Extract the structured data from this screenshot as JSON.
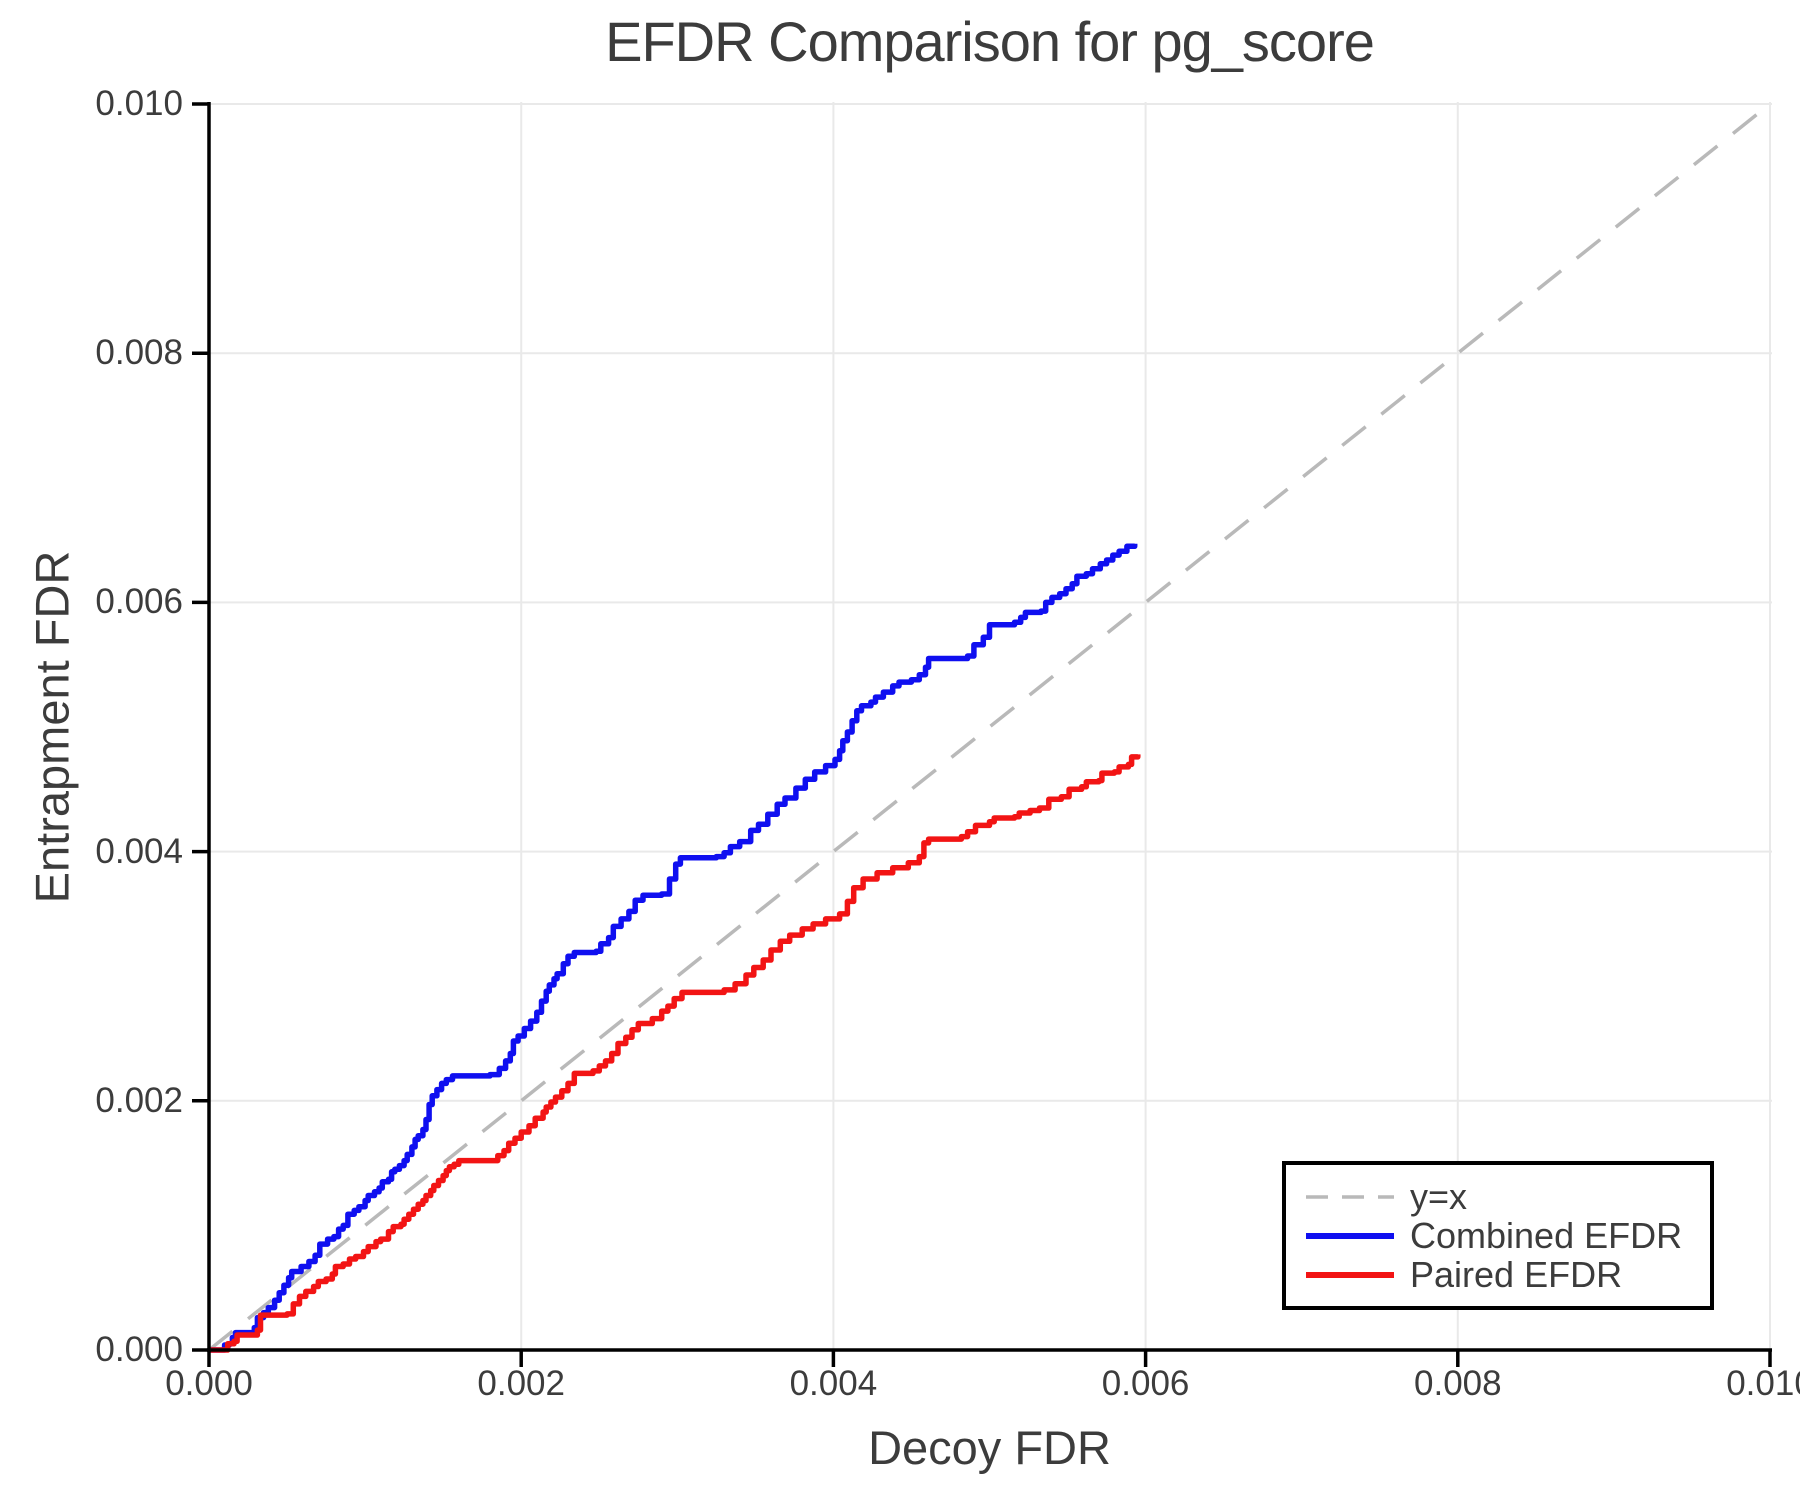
{
  "figure": {
    "background": "#ffffff"
  },
  "chart_data": {
    "type": "line",
    "title": "EFDR Comparison for pg_score",
    "xlabel": "Decoy FDR",
    "ylabel": "Entrapment FDR",
    "xlim": [
      0.0,
      0.01
    ],
    "ylim": [
      0.0,
      0.01
    ],
    "grid": true,
    "grid_color": "#e9e9e9",
    "axis_color": "#000000",
    "text_color": "#3c3c3c",
    "x_ticks": {
      "values": [
        0.0,
        0.002,
        0.004,
        0.006,
        0.008,
        0.01
      ],
      "labels": [
        "0.000",
        "0.002",
        "0.004",
        "0.006",
        "0.008",
        "0.010"
      ]
    },
    "y_ticks": {
      "values": [
        0.0,
        0.002,
        0.004,
        0.006,
        0.008,
        0.01
      ],
      "labels": [
        "0.000",
        "0.002",
        "0.004",
        "0.006",
        "0.008",
        "0.010"
      ]
    },
    "legend": {
      "position": "lower right",
      "border": true,
      "entries": [
        "y=x",
        "Combined EFDR",
        "Paired EFDR"
      ]
    },
    "series": [
      {
        "name": "y=x",
        "style": "dashed",
        "color": "#b9b9b9",
        "width": 3.5,
        "points": [
          [
            0.0,
            0.0
          ],
          [
            0.01,
            0.01
          ]
        ]
      },
      {
        "name": "Combined EFDR",
        "style": "step",
        "color": "#0f0ff0",
        "width": 5.5,
        "points": [
          [
            0.0,
            0.0
          ],
          [
            8e-05,
            0.0
          ],
          [
            0.0001,
            4e-05
          ],
          [
            0.00013,
            5e-05
          ],
          [
            0.00015,
            0.0001
          ],
          [
            0.00017,
            0.00014
          ],
          [
            0.00027,
            0.00014
          ],
          [
            0.00029,
            0.00018
          ],
          [
            0.00031,
            0.00026
          ],
          [
            0.00035,
            0.0003
          ],
          [
            0.00038,
            0.00034
          ],
          [
            0.00042,
            0.0004
          ],
          [
            0.00045,
            0.00046
          ],
          [
            0.00048,
            0.00052
          ],
          [
            0.00051,
            0.00058
          ],
          [
            0.00053,
            0.00063
          ],
          [
            0.00059,
            0.00067
          ],
          [
            0.00064,
            0.00071
          ],
          [
            0.00068,
            0.00076
          ],
          [
            0.00071,
            0.00085
          ],
          [
            0.00076,
            0.00089
          ],
          [
            0.0008,
            0.00091
          ],
          [
            0.00083,
            0.00097
          ],
          [
            0.00086,
            0.001
          ],
          [
            0.00089,
            0.00109
          ],
          [
            0.00093,
            0.00112
          ],
          [
            0.00096,
            0.00115
          ],
          [
            0.001,
            0.0012
          ],
          [
            0.00102,
            0.00124
          ],
          [
            0.00106,
            0.00127
          ],
          [
            0.00109,
            0.0013
          ],
          [
            0.00111,
            0.00135
          ],
          [
            0.00115,
            0.00137
          ],
          [
            0.00117,
            0.00143
          ],
          [
            0.00119,
            0.00145
          ],
          [
            0.00122,
            0.00148
          ],
          [
            0.00125,
            0.00152
          ],
          [
            0.00127,
            0.00157
          ],
          [
            0.0013,
            0.00163
          ],
          [
            0.00132,
            0.00169
          ],
          [
            0.00134,
            0.00172
          ],
          [
            0.00137,
            0.00177
          ],
          [
            0.00139,
            0.00185
          ],
          [
            0.00141,
            0.00197
          ],
          [
            0.00143,
            0.00204
          ],
          [
            0.00146,
            0.00209
          ],
          [
            0.00149,
            0.00214
          ],
          [
            0.00152,
            0.00217
          ],
          [
            0.00156,
            0.0022
          ],
          [
            0.0018,
            0.00221
          ],
          [
            0.00186,
            0.00226
          ],
          [
            0.0019,
            0.00232
          ],
          [
            0.00193,
            0.00238
          ],
          [
            0.00195,
            0.00248
          ],
          [
            0.00198,
            0.00252
          ],
          [
            0.00202,
            0.00258
          ],
          [
            0.00206,
            0.00264
          ],
          [
            0.0021,
            0.00271
          ],
          [
            0.00213,
            0.0028
          ],
          [
            0.00216,
            0.00288
          ],
          [
            0.00218,
            0.00293
          ],
          [
            0.00221,
            0.00298
          ],
          [
            0.00223,
            0.00302
          ],
          [
            0.00227,
            0.0031
          ],
          [
            0.0023,
            0.00316
          ],
          [
            0.00234,
            0.00319
          ],
          [
            0.00248,
            0.0032
          ],
          [
            0.00251,
            0.00326
          ],
          [
            0.00256,
            0.00331
          ],
          [
            0.00259,
            0.0034
          ],
          [
            0.00264,
            0.00346
          ],
          [
            0.00269,
            0.00352
          ],
          [
            0.00273,
            0.00361
          ],
          [
            0.00278,
            0.00365
          ],
          [
            0.0029,
            0.00366
          ],
          [
            0.00295,
            0.00378
          ],
          [
            0.00299,
            0.0039
          ],
          [
            0.00302,
            0.00395
          ],
          [
            0.00325,
            0.00396
          ],
          [
            0.0033,
            0.00399
          ],
          [
            0.00334,
            0.00404
          ],
          [
            0.0034,
            0.00408
          ],
          [
            0.00347,
            0.00417
          ],
          [
            0.00352,
            0.00422
          ],
          [
            0.00358,
            0.0043
          ],
          [
            0.00364,
            0.00438
          ],
          [
            0.00369,
            0.00443
          ],
          [
            0.00376,
            0.00451
          ],
          [
            0.00382,
            0.00458
          ],
          [
            0.00388,
            0.00464
          ],
          [
            0.00395,
            0.00469
          ],
          [
            0.00401,
            0.00474
          ],
          [
            0.00404,
            0.00481
          ],
          [
            0.00406,
            0.00489
          ],
          [
            0.00409,
            0.00496
          ],
          [
            0.00412,
            0.00505
          ],
          [
            0.00415,
            0.00513
          ],
          [
            0.00418,
            0.00517
          ],
          [
            0.00424,
            0.0052
          ],
          [
            0.00427,
            0.00524
          ],
          [
            0.00432,
            0.00528
          ],
          [
            0.00438,
            0.00533
          ],
          [
            0.00442,
            0.00536
          ],
          [
            0.0045,
            0.00538
          ],
          [
            0.00455,
            0.00542
          ],
          [
            0.00459,
            0.00548
          ],
          [
            0.00461,
            0.00555
          ],
          [
            0.00486,
            0.00557
          ],
          [
            0.0049,
            0.00566
          ],
          [
            0.00496,
            0.00572
          ],
          [
            0.005,
            0.00582
          ],
          [
            0.00516,
            0.00584
          ],
          [
            0.0052,
            0.00588
          ],
          [
            0.00523,
            0.00592
          ],
          [
            0.00533,
            0.00593
          ],
          [
            0.00536,
            0.006
          ],
          [
            0.0054,
            0.00604
          ],
          [
            0.00545,
            0.00607
          ],
          [
            0.00549,
            0.00611
          ],
          [
            0.00553,
            0.00615
          ],
          [
            0.00556,
            0.00621
          ],
          [
            0.00562,
            0.00623
          ],
          [
            0.00566,
            0.00627
          ],
          [
            0.00571,
            0.00631
          ],
          [
            0.00575,
            0.00634
          ],
          [
            0.00579,
            0.00638
          ],
          [
            0.00583,
            0.00641
          ],
          [
            0.00588,
            0.00645
          ],
          [
            0.00593,
            0.00647
          ]
        ]
      },
      {
        "name": "Paired EFDR",
        "style": "step",
        "color": "#f21414",
        "width": 5.5,
        "points": [
          [
            0.0,
            0.0
          ],
          [
            0.0001,
            0.0
          ],
          [
            0.00012,
            5e-05
          ],
          [
            0.00016,
            7e-05
          ],
          [
            0.00018,
            0.00012
          ],
          [
            0.00029,
            0.00012
          ],
          [
            0.00031,
            0.00016
          ],
          [
            0.00033,
            0.00028
          ],
          [
            0.0005,
            0.00029
          ],
          [
            0.00054,
            0.00037
          ],
          [
            0.00058,
            0.00043
          ],
          [
            0.00062,
            0.00047
          ],
          [
            0.00067,
            0.00051
          ],
          [
            0.0007,
            0.00055
          ],
          [
            0.00075,
            0.00057
          ],
          [
            0.00079,
            0.00061
          ],
          [
            0.00081,
            0.00067
          ],
          [
            0.00086,
            0.00069
          ],
          [
            0.0009,
            0.00073
          ],
          [
            0.00094,
            0.00075
          ],
          [
            0.00099,
            0.00079
          ],
          [
            0.00102,
            0.00083
          ],
          [
            0.00107,
            0.00087
          ],
          [
            0.0011,
            0.00089
          ],
          [
            0.00115,
            0.00095
          ],
          [
            0.00118,
            0.00099
          ],
          [
            0.00123,
            0.00101
          ],
          [
            0.00125,
            0.00105
          ],
          [
            0.00128,
            0.00109
          ],
          [
            0.00131,
            0.00113
          ],
          [
            0.00134,
            0.00117
          ],
          [
            0.00137,
            0.0012
          ],
          [
            0.00139,
            0.00124
          ],
          [
            0.00142,
            0.00128
          ],
          [
            0.00144,
            0.00132
          ],
          [
            0.00147,
            0.00136
          ],
          [
            0.0015,
            0.0014
          ],
          [
            0.00152,
            0.00144
          ],
          [
            0.00154,
            0.00147
          ],
          [
            0.00157,
            0.00149
          ],
          [
            0.0016,
            0.00152
          ],
          [
            0.00181,
            0.00152
          ],
          [
            0.00185,
            0.00156
          ],
          [
            0.00189,
            0.0016
          ],
          [
            0.00192,
            0.00166
          ],
          [
            0.00196,
            0.0017
          ],
          [
            0.002,
            0.00175
          ],
          [
            0.00205,
            0.0018
          ],
          [
            0.00209,
            0.00186
          ],
          [
            0.00214,
            0.00191
          ],
          [
            0.00216,
            0.00195
          ],
          [
            0.00219,
            0.00199
          ],
          [
            0.00222,
            0.00203
          ],
          [
            0.00226,
            0.00208
          ],
          [
            0.0023,
            0.00214
          ],
          [
            0.00234,
            0.00222
          ],
          [
            0.00246,
            0.00224
          ],
          [
            0.0025,
            0.00228
          ],
          [
            0.00254,
            0.00232
          ],
          [
            0.00258,
            0.00238
          ],
          [
            0.00262,
            0.00246
          ],
          [
            0.00267,
            0.00251
          ],
          [
            0.00271,
            0.00257
          ],
          [
            0.00275,
            0.00262
          ],
          [
            0.00284,
            0.00266
          ],
          [
            0.0029,
            0.00272
          ],
          [
            0.00294,
            0.00276
          ],
          [
            0.00298,
            0.00282
          ],
          [
            0.00303,
            0.00287
          ],
          [
            0.0033,
            0.00289
          ],
          [
            0.00337,
            0.00294
          ],
          [
            0.00344,
            0.00301
          ],
          [
            0.00349,
            0.00307
          ],
          [
            0.00355,
            0.00313
          ],
          [
            0.0036,
            0.00321
          ],
          [
            0.00366,
            0.00328
          ],
          [
            0.00372,
            0.00333
          ],
          [
            0.0038,
            0.00338
          ],
          [
            0.00387,
            0.00342
          ],
          [
            0.00395,
            0.00346
          ],
          [
            0.00404,
            0.0035
          ],
          [
            0.00409,
            0.0036
          ],
          [
            0.00413,
            0.00371
          ],
          [
            0.00419,
            0.00378
          ],
          [
            0.00428,
            0.00383
          ],
          [
            0.00438,
            0.00387
          ],
          [
            0.00448,
            0.00391
          ],
          [
            0.00455,
            0.00396
          ],
          [
            0.00458,
            0.00407
          ],
          [
            0.00461,
            0.0041
          ],
          [
            0.00482,
            0.00412
          ],
          [
            0.00486,
            0.00416
          ],
          [
            0.00491,
            0.00421
          ],
          [
            0.005,
            0.00424
          ],
          [
            0.00503,
            0.00427
          ],
          [
            0.00516,
            0.00428
          ],
          [
            0.00519,
            0.00431
          ],
          [
            0.00526,
            0.00433
          ],
          [
            0.00532,
            0.00435
          ],
          [
            0.00538,
            0.00442
          ],
          [
            0.00546,
            0.00444
          ],
          [
            0.00551,
            0.0045
          ],
          [
            0.00559,
            0.00452
          ],
          [
            0.00562,
            0.00456
          ],
          [
            0.0057,
            0.00457
          ],
          [
            0.00572,
            0.00463
          ],
          [
            0.0058,
            0.00464
          ],
          [
            0.00583,
            0.00468
          ],
          [
            0.00589,
            0.0047
          ],
          [
            0.00591,
            0.00476
          ],
          [
            0.00595,
            0.00478
          ]
        ]
      }
    ]
  }
}
